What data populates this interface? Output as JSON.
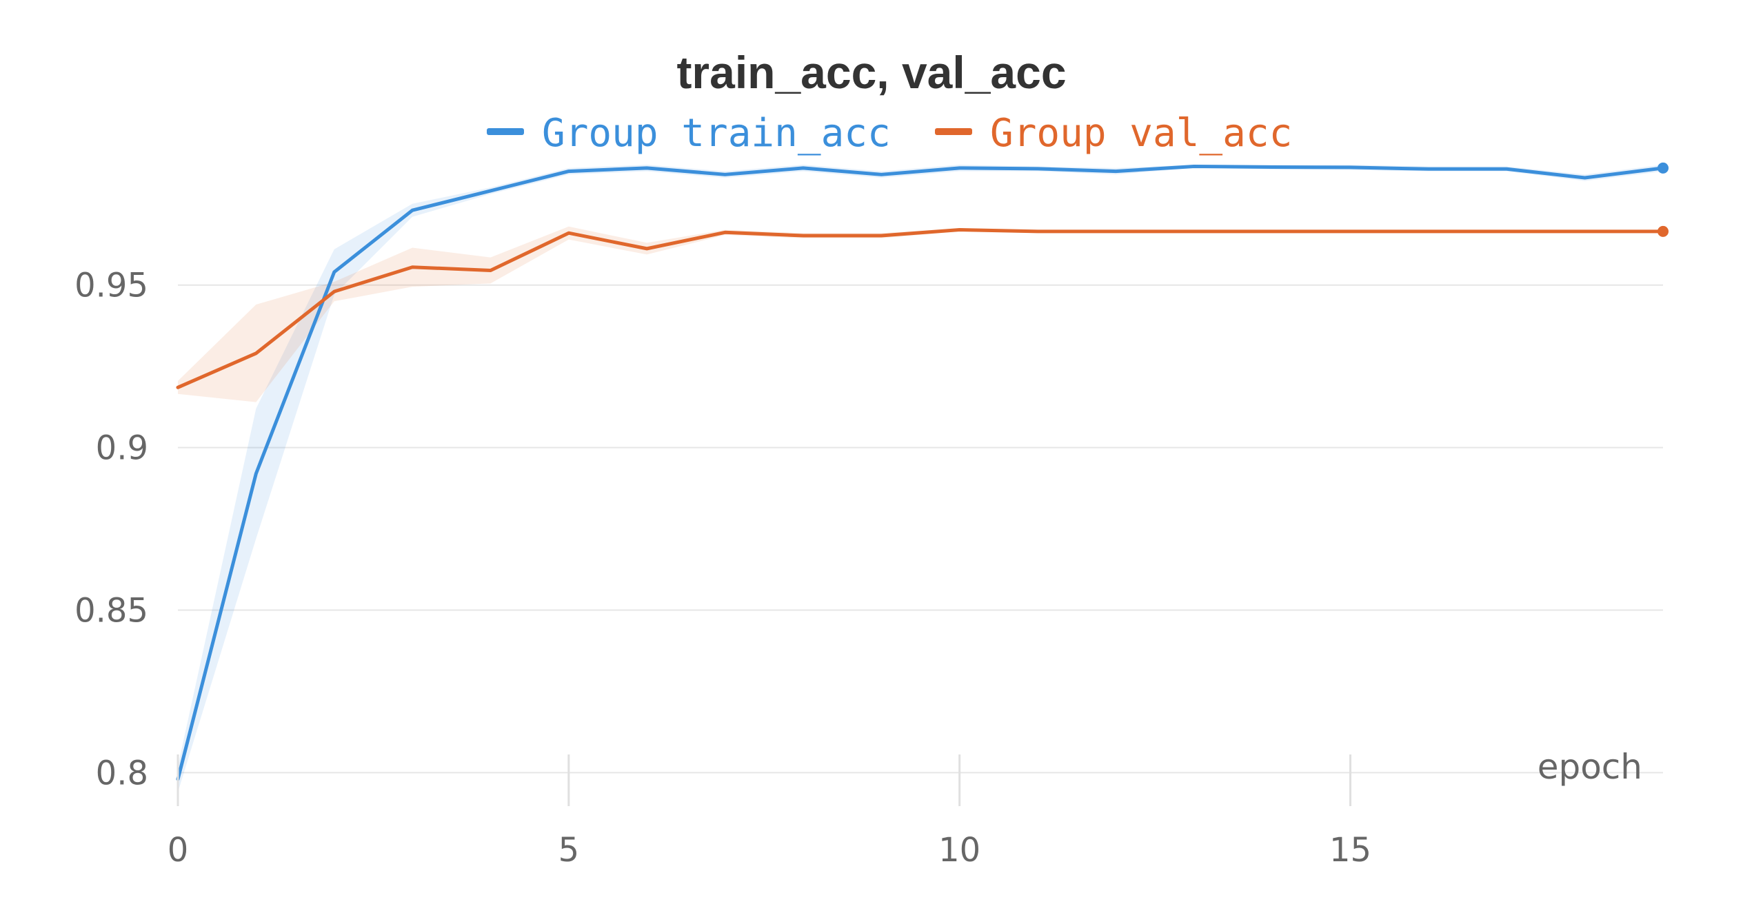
{
  "chart_data": {
    "type": "line",
    "title": "train_acc, val_acc",
    "xlabel": "epoch",
    "ylabel": "",
    "xlim": [
      0,
      19
    ],
    "ylim": [
      0.795,
      0.99
    ],
    "x_ticks": [
      0,
      5,
      10,
      15
    ],
    "x_tick_labels": [
      "0",
      "5",
      "10",
      "15"
    ],
    "y_ticks": [
      0.8,
      0.85,
      0.9,
      0.95
    ],
    "y_tick_labels": [
      "0.8",
      "0.85",
      "0.9",
      "0.95"
    ],
    "grid": true,
    "legend_position": "top",
    "x": [
      0,
      1,
      2,
      3,
      4,
      5,
      6,
      7,
      8,
      9,
      10,
      11,
      12,
      13,
      14,
      15,
      16,
      17,
      18,
      19
    ],
    "series": [
      {
        "name": "Group train_acc",
        "color": "#3b8fdb",
        "values": [
          0.798,
          0.892,
          0.954,
          0.973,
          0.979,
          0.985,
          0.986,
          0.984,
          0.986,
          0.984,
          0.986,
          0.9858,
          0.985,
          0.9865,
          0.9863,
          0.9862,
          0.9857,
          0.9857,
          0.983,
          0.986
        ],
        "band_upper": [
          0.802,
          0.912,
          0.961,
          0.975,
          0.98,
          0.986,
          0.987,
          0.985,
          0.987,
          0.985,
          0.987,
          0.9865,
          0.986,
          0.987,
          0.987,
          0.987,
          0.9865,
          0.9865,
          0.984,
          0.987
        ],
        "band_lower": [
          0.794,
          0.872,
          0.947,
          0.971,
          0.978,
          0.984,
          0.985,
          0.983,
          0.985,
          0.983,
          0.985,
          0.985,
          0.984,
          0.986,
          0.9856,
          0.9854,
          0.985,
          0.985,
          0.982,
          0.985
        ]
      },
      {
        "name": "Group val_acc",
        "color": "#e0672c",
        "values": [
          0.9185,
          0.929,
          0.948,
          0.9555,
          0.9545,
          0.966,
          0.9612,
          0.9662,
          0.9652,
          0.9652,
          0.967,
          0.9665,
          0.9665,
          0.9665,
          0.9665,
          0.9665,
          0.9665,
          0.9665,
          0.9665,
          0.9665
        ],
        "band_upper": [
          0.9205,
          0.944,
          0.951,
          0.9615,
          0.9585,
          0.968,
          0.963,
          0.967,
          0.966,
          0.966,
          0.9675,
          0.967,
          0.967,
          0.967,
          0.967,
          0.967,
          0.967,
          0.967,
          0.967,
          0.967
        ],
        "band_lower": [
          0.9165,
          0.914,
          0.945,
          0.9495,
          0.9505,
          0.964,
          0.9594,
          0.9654,
          0.9644,
          0.9644,
          0.9665,
          0.966,
          0.966,
          0.966,
          0.966,
          0.966,
          0.966,
          0.966,
          0.966,
          0.966
        ]
      }
    ]
  }
}
